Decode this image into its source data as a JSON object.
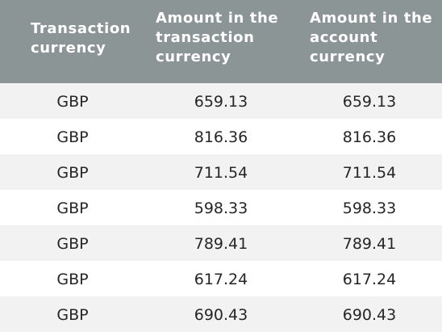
{
  "table": {
    "headers": [
      "Transaction currency",
      "Amount in the transaction currency",
      "Amount in the account currency"
    ],
    "rows": [
      [
        "GBP",
        "659.13",
        "659.13"
      ],
      [
        "GBP",
        "816.36",
        "816.36"
      ],
      [
        "GBP",
        "711.54",
        "711.54"
      ],
      [
        "GBP",
        "598.33",
        "598.33"
      ],
      [
        "GBP",
        "789.41",
        "789.41"
      ],
      [
        "GBP",
        "617.24",
        "617.24"
      ],
      [
        "GBP",
        "690.43",
        "690.43"
      ]
    ]
  },
  "colors": {
    "header_background": "#8c9596",
    "header_text": "#ffffff",
    "row_stripe": "#f2f2f2",
    "row_plain": "#ffffff",
    "body_text": "#262626"
  }
}
